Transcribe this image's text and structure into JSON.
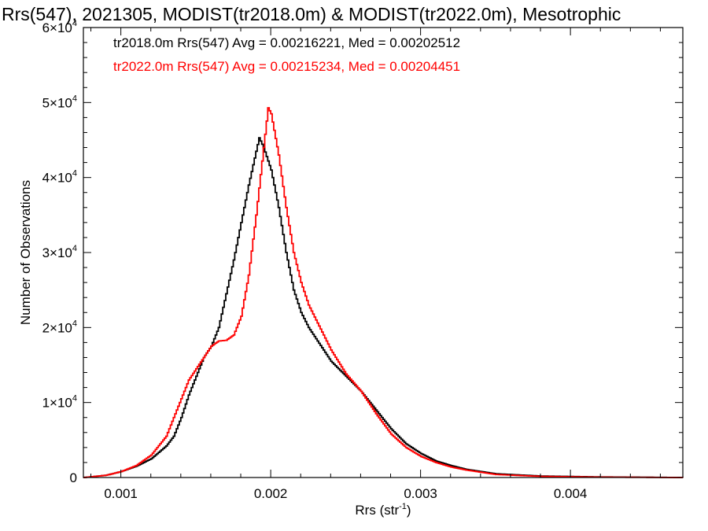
{
  "chart_data": {
    "type": "line",
    "title": "Rrs(547), 2021305, MODIST(tr2018.0m) & MODIST(tr2022.0m), Mesotrophic",
    "xlabel": "Rrs (str",
    "xlabel_sup": "-1",
    "xlabel_suffix": ")",
    "ylabel": "Number of Observations",
    "xlim": [
      0.00075,
      0.00475
    ],
    "ylim": [
      0,
      60000
    ],
    "xticks": [
      {
        "value": 0.001,
        "label": "0.001"
      },
      {
        "value": 0.002,
        "label": "0.002"
      },
      {
        "value": 0.003,
        "label": "0.003"
      },
      {
        "value": 0.004,
        "label": "0.004"
      }
    ],
    "yticks": [
      {
        "value": 0,
        "mant": "0",
        "exp": ""
      },
      {
        "value": 10000,
        "mant": "1×10",
        "exp": "4"
      },
      {
        "value": 20000,
        "mant": "2×10",
        "exp": "4"
      },
      {
        "value": 30000,
        "mant": "3×10",
        "exp": "4"
      },
      {
        "value": 40000,
        "mant": "4×10",
        "exp": "4"
      },
      {
        "value": 50000,
        "mant": "5×10",
        "exp": "4"
      },
      {
        "value": 60000,
        "mant": "6×10",
        "exp": "4"
      }
    ],
    "grid": false,
    "legend_position": "top-left",
    "series": [
      {
        "name": "tr2018.0m Rrs(547) Avg = 0.00216221, Med = 0.00202512",
        "color": "#000000",
        "points": [
          [
            0.00075,
            0
          ],
          [
            0.0008,
            100
          ],
          [
            0.0009,
            300
          ],
          [
            0.001,
            800
          ],
          [
            0.0011,
            1500
          ],
          [
            0.0012,
            2500
          ],
          [
            0.0013,
            4200
          ],
          [
            0.00135,
            5500
          ],
          [
            0.0014,
            8000
          ],
          [
            0.00145,
            11000
          ],
          [
            0.0015,
            13500
          ],
          [
            0.00155,
            16000
          ],
          [
            0.0016,
            17500
          ],
          [
            0.00165,
            20000
          ],
          [
            0.0017,
            24500
          ],
          [
            0.00175,
            29000
          ],
          [
            0.0018,
            34000
          ],
          [
            0.00185,
            39000
          ],
          [
            0.0019,
            43500
          ],
          [
            0.00192,
            45300
          ],
          [
            0.00195,
            44000
          ],
          [
            0.002,
            41000
          ],
          [
            0.00205,
            36000
          ],
          [
            0.0021,
            30000
          ],
          [
            0.00215,
            25000
          ],
          [
            0.0022,
            22000
          ],
          [
            0.00225,
            20000
          ],
          [
            0.0023,
            18500
          ],
          [
            0.0024,
            15500
          ],
          [
            0.0025,
            13500
          ],
          [
            0.0026,
            11500
          ],
          [
            0.0027,
            9000
          ],
          [
            0.0028,
            6500
          ],
          [
            0.0029,
            4500
          ],
          [
            0.003,
            3200
          ],
          [
            0.0031,
            2200
          ],
          [
            0.0032,
            1600
          ],
          [
            0.0033,
            1100
          ],
          [
            0.0035,
            500
          ],
          [
            0.0038,
            200
          ],
          [
            0.0042,
            80
          ],
          [
            0.00475,
            0
          ]
        ]
      },
      {
        "name": "tr2022.0m Rrs(547) Avg = 0.00215234, Med = 0.00204451",
        "color": "#ff0000",
        "points": [
          [
            0.00075,
            0
          ],
          [
            0.0008,
            100
          ],
          [
            0.0009,
            300
          ],
          [
            0.001,
            800
          ],
          [
            0.0011,
            1600
          ],
          [
            0.0012,
            3000
          ],
          [
            0.0013,
            5500
          ],
          [
            0.00135,
            8000
          ],
          [
            0.0014,
            10500
          ],
          [
            0.00145,
            13000
          ],
          [
            0.0015,
            14500
          ],
          [
            0.00155,
            16000
          ],
          [
            0.0016,
            17500
          ],
          [
            0.00165,
            18200
          ],
          [
            0.0017,
            18300
          ],
          [
            0.00175,
            19000
          ],
          [
            0.0018,
            21500
          ],
          [
            0.00185,
            27000
          ],
          [
            0.0019,
            35000
          ],
          [
            0.00195,
            44000
          ],
          [
            0.00198,
            49300
          ],
          [
            0.002,
            48500
          ],
          [
            0.00205,
            43000
          ],
          [
            0.0021,
            36000
          ],
          [
            0.00215,
            30000
          ],
          [
            0.0022,
            26000
          ],
          [
            0.00225,
            23000
          ],
          [
            0.0023,
            21000
          ],
          [
            0.0024,
            17000
          ],
          [
            0.0025,
            13800
          ],
          [
            0.0026,
            11500
          ],
          [
            0.0027,
            8500
          ],
          [
            0.0028,
            5800
          ],
          [
            0.0029,
            4000
          ],
          [
            0.003,
            2800
          ],
          [
            0.0031,
            2000
          ],
          [
            0.0032,
            1400
          ],
          [
            0.0033,
            1000
          ],
          [
            0.0035,
            400
          ],
          [
            0.0038,
            150
          ],
          [
            0.0042,
            50
          ],
          [
            0.00475,
            0
          ]
        ]
      }
    ]
  }
}
